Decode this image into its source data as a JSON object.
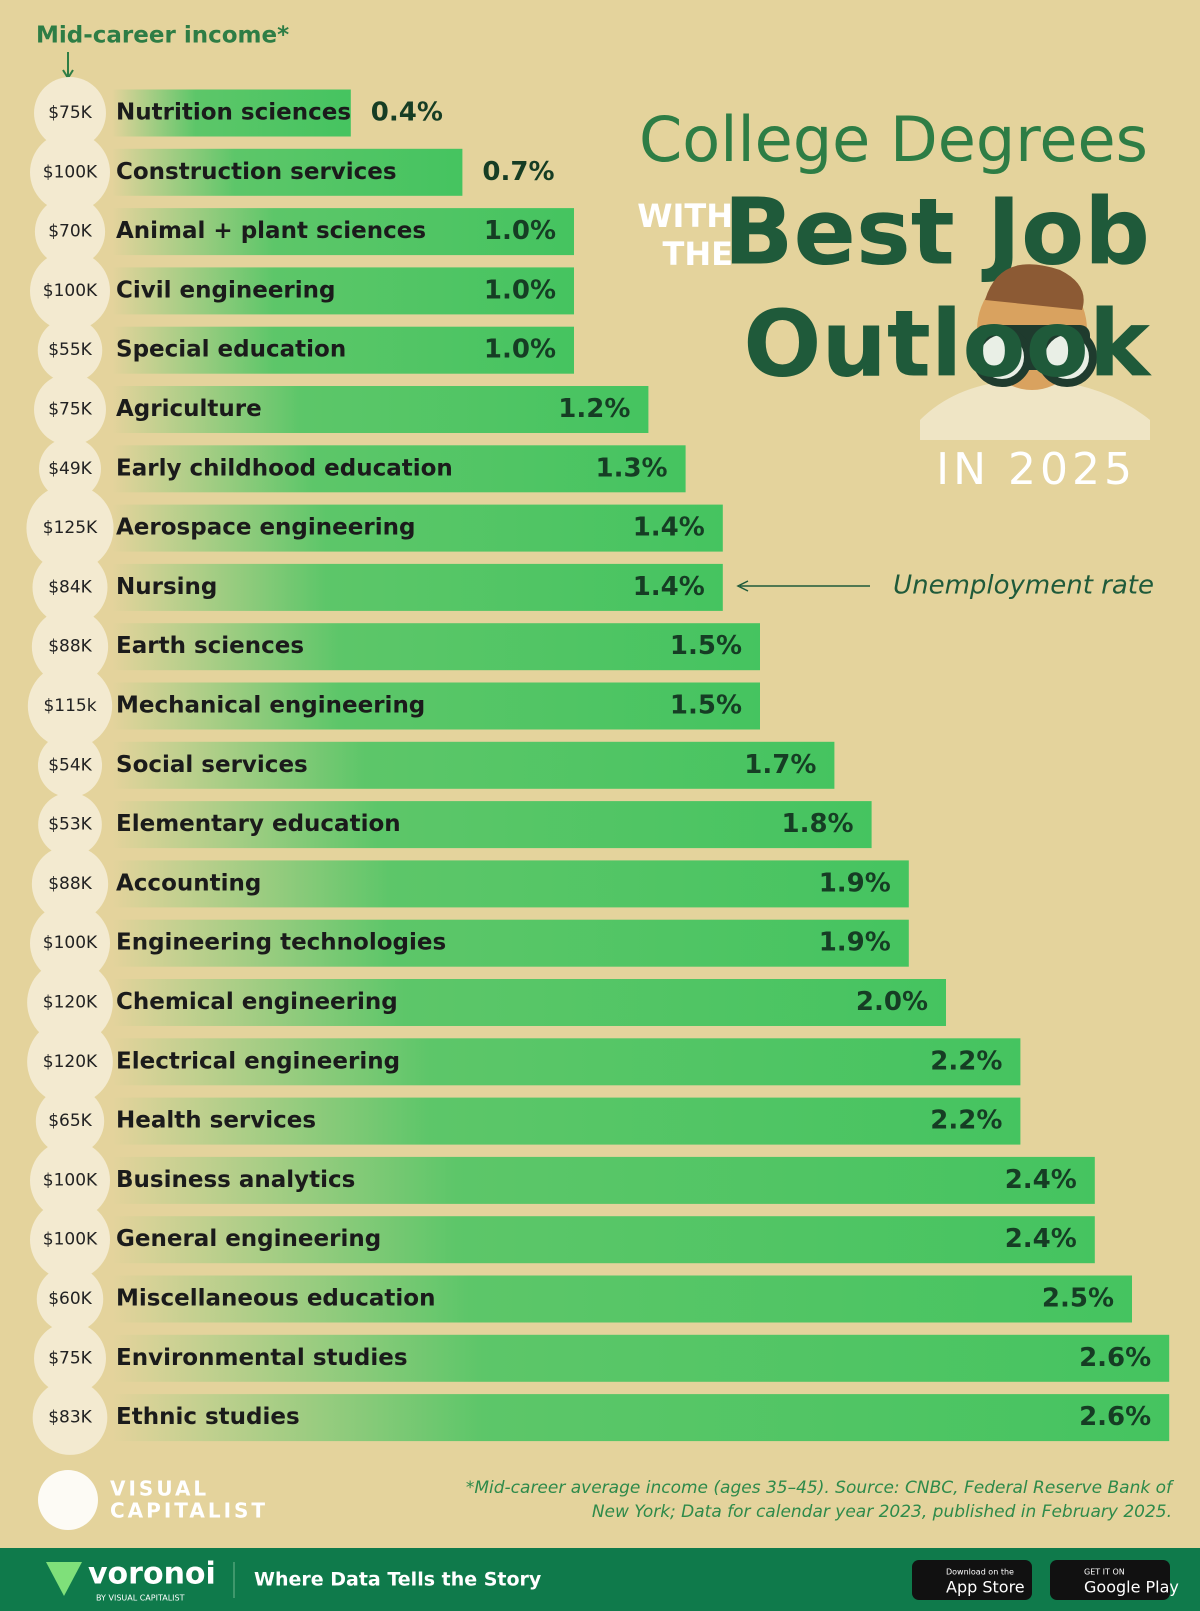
{
  "chart_data": {
    "type": "hbar",
    "title_line1": "College Degrees",
    "title_with": "WITH",
    "title_the": "THE",
    "title_line2": "Best Job",
    "title_line3": "Outlook",
    "title_year": "IN 2025",
    "income_header": "Mid-career income*",
    "annotation": "Unemployment rate",
    "categories": [
      "Nutrition sciences",
      "Construction services",
      "Animal + plant sciences",
      "Civil engineering",
      "Special education",
      "Agriculture",
      "Early childhood education",
      "Aerospace engineering",
      "Nursing",
      "Earth sciences",
      "Mechanical engineering",
      "Social services",
      "Elementary education",
      "Accounting",
      "Engineering technologies",
      "Chemical engineering",
      "Electrical engineering",
      "Health services",
      "Business analytics",
      "General engineering",
      "Miscellaneous education",
      "Environmental studies",
      "Ethnic studies"
    ],
    "values": [
      0.4,
      0.7,
      1.0,
      1.0,
      1.0,
      1.2,
      1.3,
      1.4,
      1.4,
      1.5,
      1.5,
      1.7,
      1.8,
      1.9,
      1.9,
      2.0,
      2.2,
      2.2,
      2.4,
      2.4,
      2.5,
      2.6,
      2.6
    ],
    "value_labels": [
      "0.4%",
      "0.7%",
      "1.0%",
      "1.0%",
      "1.0%",
      "1.2%",
      "1.3%",
      "1.4%",
      "1.4%",
      "1.5%",
      "1.5%",
      "1.7%",
      "1.8%",
      "1.9%",
      "1.9%",
      "2.0%",
      "2.2%",
      "2.2%",
      "2.4%",
      "2.4%",
      "2.5%",
      "2.6%",
      "2.6%"
    ],
    "incomes": [
      75000,
      100000,
      70000,
      100000,
      55000,
      75000,
      49000,
      125000,
      84000,
      88000,
      115000,
      54000,
      53000,
      88000,
      100000,
      120000,
      120000,
      65000,
      100000,
      100000,
      60000,
      75000,
      83000
    ],
    "income_labels": [
      "$75K",
      "$100K",
      "$70K",
      "$100K",
      "$55K",
      "$75K",
      "$49K",
      "$125K",
      "$84K",
      "$88K",
      "$115k",
      "$54K",
      "$53K",
      "$88K",
      "$100K",
      "$120K",
      "$120K",
      "$65K",
      "$100K",
      "$100K",
      "$60K",
      "$75K",
      "$83K"
    ],
    "color": "#45c460",
    "footnote": [
      "*Mid-career average income (ages 35–45). Source: CNBC, Federal Reserve Bank of",
      "New York; Data for calendar year 2023, published in February 2025."
    ]
  },
  "branding": {
    "publisher": "VISUAL",
    "publisher2": "CAPITALIST",
    "voronoi": "voronoi",
    "voronoi_by": "BY VISUAL CAPITALIST",
    "tagline": "Where Data Tells the Story",
    "app_small": "Download on the",
    "app_big": "App Store",
    "play_small": "GET IT ON",
    "play_big": "Google Play"
  }
}
